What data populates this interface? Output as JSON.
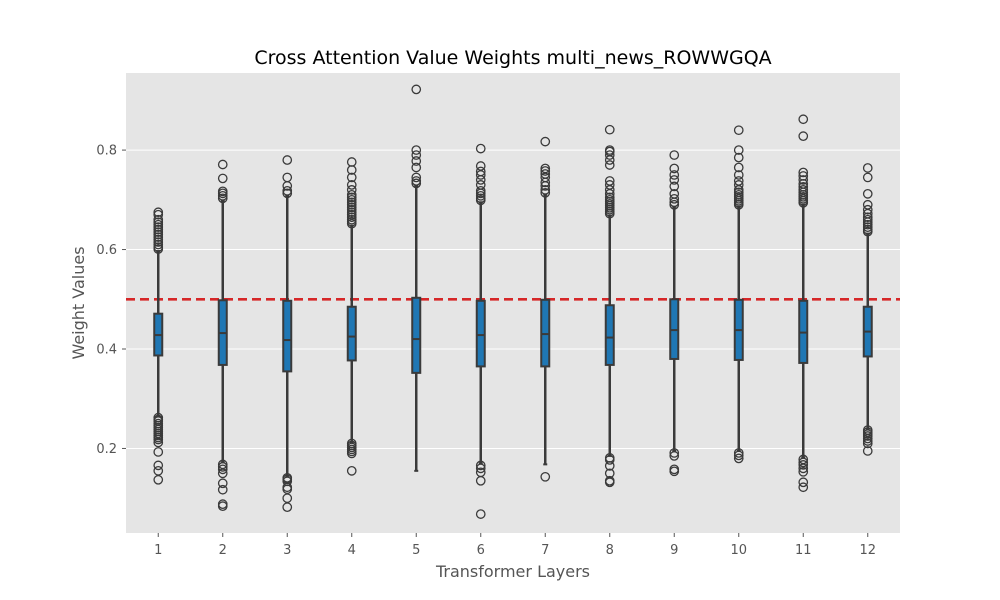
{
  "chart_data": {
    "type": "box",
    "title": "Cross Attention Value Weights multi_news_ROWWGQA",
    "xlabel": "Transformer Layers",
    "ylabel": "Weight Values",
    "categories": [
      "1",
      "2",
      "3",
      "4",
      "5",
      "6",
      "7",
      "8",
      "9",
      "10",
      "11",
      "12"
    ],
    "ylim": [
      0.03,
      0.955
    ],
    "yticks": [
      0.2,
      0.4,
      0.6,
      0.8
    ],
    "ytick_labels": [
      "0.2",
      "0.4",
      "0.6",
      "0.8"
    ],
    "grid": true,
    "reference_line": {
      "y": 0.5,
      "style": "dashed"
    },
    "boxes": [
      {
        "category": "1",
        "whisker_low": 0.265,
        "q1": 0.387,
        "median": 0.428,
        "q3": 0.471,
        "whisker_high": 0.597,
        "outliers_low": [
          0.262,
          0.258,
          0.255,
          0.25,
          0.246,
          0.242,
          0.238,
          0.234,
          0.23,
          0.226,
          0.222,
          0.218,
          0.212,
          0.193,
          0.166,
          0.155,
          0.137
        ],
        "outliers_high": [
          0.601,
          0.605,
          0.61,
          0.615,
          0.62,
          0.625,
          0.63,
          0.635,
          0.64,
          0.645,
          0.65,
          0.655,
          0.66,
          0.67,
          0.675
        ]
      },
      {
        "category": "2",
        "whisker_low": 0.172,
        "q1": 0.368,
        "median": 0.432,
        "q3": 0.498,
        "whisker_high": 0.698,
        "outliers_low": [
          0.168,
          0.163,
          0.158,
          0.15,
          0.13,
          0.117,
          0.088,
          0.084
        ],
        "outliers_high": [
          0.703,
          0.708,
          0.713,
          0.717,
          0.743,
          0.771
        ]
      },
      {
        "category": "3",
        "whisker_low": 0.145,
        "q1": 0.355,
        "median": 0.418,
        "q3": 0.497,
        "whisker_high": 0.708,
        "outliers_low": [
          0.141,
          0.138,
          0.134,
          0.122,
          0.118,
          0.1,
          0.082
        ],
        "outliers_high": [
          0.713,
          0.718,
          0.728,
          0.745,
          0.78
        ]
      },
      {
        "category": "4",
        "whisker_low": 0.213,
        "q1": 0.377,
        "median": 0.425,
        "q3": 0.485,
        "whisker_high": 0.648,
        "outliers_low": [
          0.21,
          0.206,
          0.202,
          0.198,
          0.194,
          0.19,
          0.155
        ],
        "outliers_high": [
          0.652,
          0.656,
          0.66,
          0.665,
          0.67,
          0.675,
          0.68,
          0.685,
          0.69,
          0.695,
          0.7,
          0.705,
          0.71,
          0.72,
          0.73,
          0.745,
          0.76,
          0.776
        ]
      },
      {
        "category": "5",
        "whisker_low": 0.155,
        "q1": 0.352,
        "median": 0.42,
        "q3": 0.503,
        "whisker_high": 0.728,
        "outliers_low": [],
        "outliers_high": [
          0.733,
          0.738,
          0.745,
          0.765,
          0.778,
          0.79,
          0.8,
          0.922
        ]
      },
      {
        "category": "6",
        "whisker_low": 0.17,
        "q1": 0.365,
        "median": 0.428,
        "q3": 0.497,
        "whisker_high": 0.695,
        "outliers_low": [
          0.166,
          0.16,
          0.152,
          0.135,
          0.068
        ],
        "outliers_high": [
          0.699,
          0.703,
          0.708,
          0.713,
          0.718,
          0.73,
          0.74,
          0.75,
          0.757,
          0.768,
          0.803
        ]
      },
      {
        "category": "7",
        "whisker_low": 0.168,
        "q1": 0.365,
        "median": 0.43,
        "q3": 0.499,
        "whisker_high": 0.71,
        "outliers_low": [
          0.143
        ],
        "outliers_high": [
          0.714,
          0.72,
          0.728,
          0.735,
          0.745,
          0.752,
          0.758,
          0.763,
          0.817
        ]
      },
      {
        "category": "8",
        "whisker_low": 0.185,
        "q1": 0.368,
        "median": 0.423,
        "q3": 0.488,
        "whisker_high": 0.668,
        "outliers_low": [
          0.181,
          0.177,
          0.165,
          0.15,
          0.135,
          0.132
        ],
        "outliers_high": [
          0.672,
          0.676,
          0.68,
          0.684,
          0.688,
          0.692,
          0.696,
          0.7,
          0.705,
          0.712,
          0.72,
          0.73,
          0.738,
          0.77,
          0.78,
          0.79,
          0.797,
          0.8,
          0.841
        ]
      },
      {
        "category": "9",
        "whisker_low": 0.195,
        "q1": 0.38,
        "median": 0.438,
        "q3": 0.5,
        "whisker_high": 0.686,
        "outliers_low": [
          0.191,
          0.185,
          0.158,
          0.154
        ],
        "outliers_high": [
          0.69,
          0.695,
          0.702,
          0.712,
          0.727,
          0.74,
          0.75,
          0.763,
          0.79
        ]
      },
      {
        "category": "10",
        "whisker_low": 0.195,
        "q1": 0.378,
        "median": 0.438,
        "q3": 0.499,
        "whisker_high": 0.686,
        "outliers_low": [
          0.191,
          0.186,
          0.18
        ],
        "outliers_high": [
          0.69,
          0.694,
          0.698,
          0.702,
          0.706,
          0.71,
          0.715,
          0.72,
          0.73,
          0.738,
          0.75,
          0.765,
          0.785,
          0.8,
          0.84
        ]
      },
      {
        "category": "11",
        "whisker_low": 0.182,
        "q1": 0.372,
        "median": 0.433,
        "q3": 0.497,
        "whisker_high": 0.69,
        "outliers_low": [
          0.178,
          0.172,
          0.167,
          0.16,
          0.153,
          0.132,
          0.122
        ],
        "outliers_high": [
          0.694,
          0.698,
          0.702,
          0.706,
          0.71,
          0.715,
          0.72,
          0.726,
          0.732,
          0.74,
          0.748,
          0.755,
          0.828,
          0.862
        ]
      },
      {
        "category": "12",
        "whisker_low": 0.24,
        "q1": 0.385,
        "median": 0.435,
        "q3": 0.485,
        "whisker_high": 0.632,
        "outliers_low": [
          0.237,
          0.233,
          0.229,
          0.225,
          0.22,
          0.215,
          0.21,
          0.195
        ],
        "outliers_high": [
          0.636,
          0.64,
          0.645,
          0.65,
          0.655,
          0.66,
          0.665,
          0.672,
          0.68,
          0.69,
          0.712,
          0.745,
          0.764
        ]
      }
    ],
    "colors": {
      "plot_background": "#E5E5E5",
      "grid": "#FFFFFF",
      "box_fill": "#1F77B4",
      "box_edge": "#3A3A3A",
      "outlier_edge": "#3A3A3A",
      "reference_line": "#D62728"
    }
  }
}
